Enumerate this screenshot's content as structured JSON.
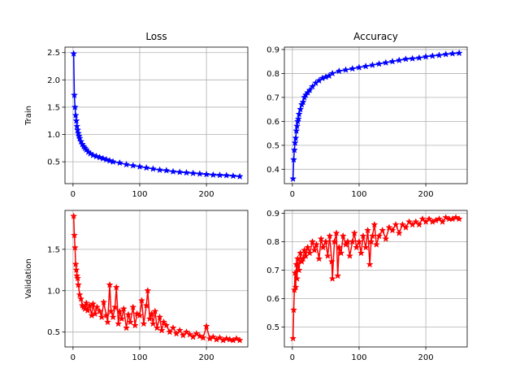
{
  "colors": {
    "train": "#0000ff",
    "validation": "#ff0000",
    "grid": "#b0b0b0",
    "axes": "#000000",
    "background": "#ffffff"
  },
  "chart_data": [
    {
      "id": "train-loss",
      "type": "line",
      "title": "Loss",
      "ylabel": "Train",
      "xlabel": "",
      "color": "train",
      "marker": "star",
      "grid": true,
      "xlim": [
        -12,
        262
      ],
      "ylim": [
        0.1,
        2.6
      ],
      "xticks": [
        0,
        100,
        200
      ],
      "yticks": [
        0.5,
        1.0,
        1.5,
        2.0,
        2.5
      ],
      "ytick_labels": [
        "0.5",
        "1.0",
        "1.5",
        "2.0",
        "2.5"
      ],
      "series": [
        {
          "x": [
            1,
            2,
            3,
            4,
            5,
            6,
            7,
            8,
            9,
            10,
            12,
            14,
            16,
            18,
            20,
            23,
            26,
            30,
            35,
            40,
            45,
            50,
            55,
            60,
            70,
            80,
            90,
            100,
            110,
            120,
            130,
            140,
            150,
            160,
            170,
            180,
            190,
            200,
            210,
            220,
            230,
            240,
            250
          ],
          "values": [
            2.48,
            1.72,
            1.5,
            1.35,
            1.25,
            1.15,
            1.08,
            1.02,
            0.97,
            0.93,
            0.87,
            0.82,
            0.78,
            0.75,
            0.72,
            0.68,
            0.65,
            0.62,
            0.6,
            0.58,
            0.56,
            0.54,
            0.52,
            0.5,
            0.48,
            0.45,
            0.43,
            0.41,
            0.39,
            0.37,
            0.35,
            0.34,
            0.32,
            0.31,
            0.3,
            0.29,
            0.28,
            0.27,
            0.26,
            0.255,
            0.25,
            0.24,
            0.23
          ]
        }
      ]
    },
    {
      "id": "train-accuracy",
      "type": "line",
      "title": "Accuracy",
      "ylabel": "",
      "xlabel": "",
      "color": "train",
      "marker": "star",
      "grid": true,
      "xlim": [
        -12,
        262
      ],
      "ylim": [
        0.34,
        0.91
      ],
      "xticks": [
        0,
        100,
        200
      ],
      "yticks": [
        0.4,
        0.5,
        0.6,
        0.7,
        0.8,
        0.9
      ],
      "ytick_labels": [
        "0.4",
        "0.5",
        "0.6",
        "0.7",
        "0.8",
        "0.9"
      ],
      "series": [
        {
          "x": [
            1,
            2,
            3,
            4,
            5,
            6,
            7,
            8,
            9,
            10,
            12,
            14,
            16,
            18,
            20,
            23,
            26,
            30,
            35,
            40,
            45,
            50,
            55,
            60,
            70,
            80,
            90,
            100,
            110,
            120,
            130,
            140,
            150,
            160,
            170,
            180,
            190,
            200,
            210,
            220,
            230,
            240,
            250
          ],
          "values": [
            0.36,
            0.44,
            0.48,
            0.51,
            0.53,
            0.56,
            0.58,
            0.6,
            0.61,
            0.63,
            0.65,
            0.67,
            0.68,
            0.7,
            0.71,
            0.72,
            0.73,
            0.745,
            0.76,
            0.77,
            0.78,
            0.785,
            0.79,
            0.8,
            0.81,
            0.815,
            0.82,
            0.825,
            0.83,
            0.835,
            0.84,
            0.845,
            0.85,
            0.855,
            0.86,
            0.862,
            0.865,
            0.87,
            0.873,
            0.876,
            0.88,
            0.883,
            0.885
          ]
        }
      ]
    },
    {
      "id": "validation-loss",
      "type": "line",
      "title": "",
      "ylabel": "Validation",
      "xlabel": "",
      "color": "validation",
      "marker": "star",
      "grid": true,
      "xlim": [
        -12,
        262
      ],
      "ylim": [
        0.32,
        1.97
      ],
      "xticks": [
        0,
        100,
        200
      ],
      "yticks": [
        0.5,
        1.0,
        1.5
      ],
      "ytick_labels": [
        "0.5",
        "1.0",
        "1.5"
      ],
      "series": [
        {
          "x": [
            1,
            2,
            3,
            4,
            5,
            6,
            7,
            8,
            10,
            12,
            14,
            16,
            18,
            20,
            22,
            25,
            28,
            30,
            33,
            36,
            40,
            43,
            46,
            50,
            52,
            55,
            57,
            60,
            63,
            65,
            68,
            70,
            73,
            76,
            80,
            83,
            86,
            90,
            93,
            96,
            100,
            103,
            106,
            110,
            112,
            115,
            118,
            120,
            123,
            126,
            130,
            133,
            136,
            140,
            145,
            150,
            155,
            160,
            165,
            170,
            175,
            180,
            185,
            190,
            195,
            200,
            205,
            210,
            215,
            220,
            225,
            230,
            235,
            240,
            245,
            250
          ],
          "values": [
            1.9,
            1.67,
            1.52,
            1.32,
            1.25,
            1.18,
            1.15,
            1.07,
            0.95,
            0.9,
            0.82,
            0.8,
            0.78,
            0.85,
            0.76,
            0.82,
            0.7,
            0.84,
            0.72,
            0.8,
            0.75,
            0.68,
            0.86,
            0.7,
            0.62,
            1.07,
            0.75,
            0.68,
            0.8,
            1.04,
            0.6,
            0.75,
            0.66,
            0.78,
            0.55,
            0.71,
            0.62,
            0.8,
            0.58,
            0.72,
            0.7,
            0.88,
            0.6,
            0.82,
            1.0,
            0.66,
            0.72,
            0.6,
            0.75,
            0.55,
            0.68,
            0.52,
            0.62,
            0.58,
            0.5,
            0.55,
            0.48,
            0.52,
            0.46,
            0.5,
            0.47,
            0.44,
            0.48,
            0.45,
            0.43,
            0.57,
            0.42,
            0.44,
            0.41,
            0.43,
            0.4,
            0.42,
            0.41,
            0.4,
            0.42,
            0.4
          ]
        }
      ]
    },
    {
      "id": "validation-accuracy",
      "type": "line",
      "title": "",
      "ylabel": "",
      "xlabel": "",
      "color": "validation",
      "marker": "star",
      "grid": true,
      "xlim": [
        -12,
        262
      ],
      "ylim": [
        0.43,
        0.91
      ],
      "xticks": [
        0,
        100,
        200
      ],
      "yticks": [
        0.5,
        0.6,
        0.7,
        0.8,
        0.9
      ],
      "ytick_labels": [
        "0.5",
        "0.6",
        "0.7",
        "0.8",
        "0.9"
      ],
      "series": [
        {
          "x": [
            1,
            2,
            3,
            4,
            5,
            6,
            7,
            8,
            10,
            12,
            14,
            16,
            18,
            20,
            23,
            26,
            30,
            33,
            36,
            40,
            43,
            46,
            50,
            53,
            56,
            59,
            60,
            63,
            66,
            68,
            70,
            73,
            76,
            80,
            83,
            86,
            90,
            93,
            96,
            100,
            103,
            106,
            110,
            113,
            116,
            118,
            120,
            123,
            126,
            130,
            135,
            140,
            145,
            150,
            155,
            160,
            165,
            170,
            175,
            180,
            185,
            190,
            195,
            200,
            205,
            210,
            215,
            220,
            225,
            230,
            235,
            240,
            245,
            250
          ],
          "values": [
            0.46,
            0.56,
            0.63,
            0.69,
            0.64,
            0.72,
            0.67,
            0.74,
            0.7,
            0.76,
            0.73,
            0.74,
            0.77,
            0.75,
            0.78,
            0.76,
            0.8,
            0.77,
            0.79,
            0.74,
            0.81,
            0.78,
            0.8,
            0.75,
            0.82,
            0.73,
            0.67,
            0.8,
            0.83,
            0.68,
            0.78,
            0.76,
            0.82,
            0.79,
            0.8,
            0.75,
            0.8,
            0.83,
            0.78,
            0.8,
            0.76,
            0.82,
            0.78,
            0.84,
            0.72,
            0.8,
            0.82,
            0.86,
            0.79,
            0.82,
            0.84,
            0.81,
            0.85,
            0.84,
            0.86,
            0.83,
            0.86,
            0.85,
            0.87,
            0.86,
            0.87,
            0.86,
            0.88,
            0.87,
            0.88,
            0.87,
            0.875,
            0.88,
            0.87,
            0.885,
            0.88,
            0.88,
            0.885,
            0.88
          ]
        }
      ]
    }
  ]
}
